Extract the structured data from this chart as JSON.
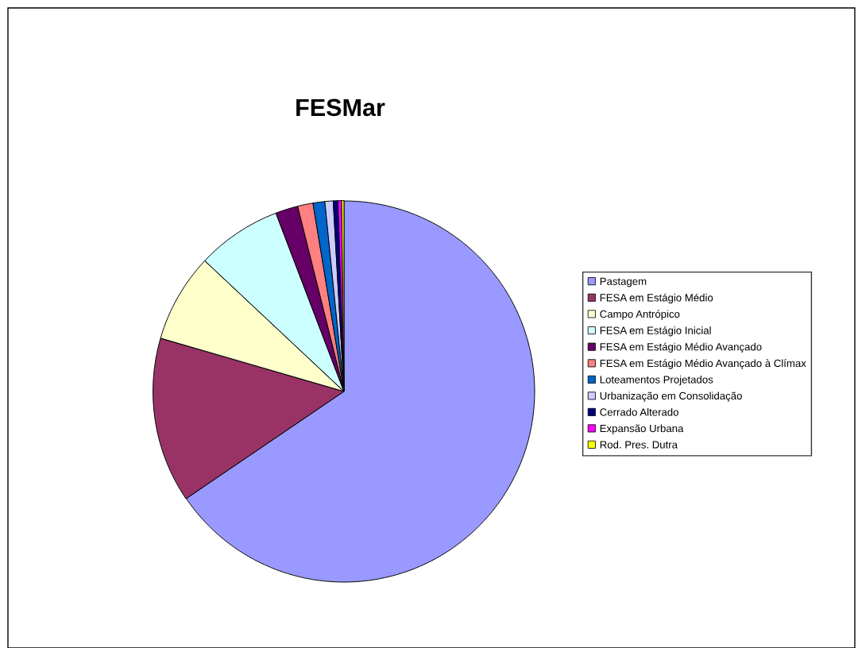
{
  "chart_data": {
    "type": "pie",
    "title": "FESMar",
    "categories": [
      "Pastagem",
      "FESA em Estágio Médio",
      "Campo Antrópico",
      "FESA em Estágio Inicial",
      "FESA em Estágio Médio Avançado",
      "FESA em Estágio Médio Avançado à Clímax",
      "Loteamentos Projetados",
      "Urbanização em Consolidação",
      "Cerrado Alterado",
      "Expansão Urbana",
      "Rod. Pres. Dutra"
    ],
    "values": [
      65.5,
      14.0,
      7.5,
      7.2,
      1.9,
      1.3,
      1.0,
      0.7,
      0.4,
      0.3,
      0.2
    ],
    "colors": [
      "#9999ff",
      "#993366",
      "#ffffcc",
      "#ccffff",
      "#660066",
      "#ff8080",
      "#0066cc",
      "#ccccff",
      "#000080",
      "#ff00ff",
      "#ffff00"
    ],
    "legend": "right"
  }
}
